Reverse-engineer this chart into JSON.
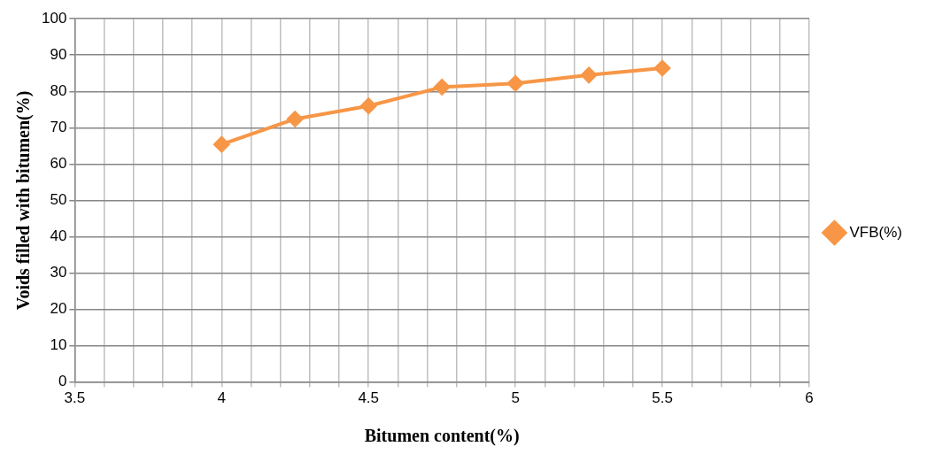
{
  "chart_data": {
    "type": "line",
    "xlabel": "Bitumen content(%)",
    "ylabel": "Voids filled with bitumen(%)",
    "x": [
      4,
      4.25,
      4.5,
      4.75,
      5,
      5.25,
      5.5
    ],
    "series": [
      {
        "name": "VFB(%)",
        "color": "#f79646",
        "values": [
          65.4,
          72.4,
          76,
          81.2,
          82.2,
          84.5,
          86.4
        ]
      }
    ],
    "xlim": [
      3.5,
      6
    ],
    "xticks": [
      3.5,
      {
        "value": 3.6,
        "label": null
      },
      {
        "value": 3.7,
        "label": null
      },
      {
        "value": 3.8,
        "label": null
      },
      {
        "value": 3.9,
        "label": null
      },
      4,
      {
        "value": 4.1,
        "label": null
      },
      {
        "value": 4.2,
        "label": null
      },
      {
        "value": 4.3,
        "label": null
      },
      {
        "value": 4.4,
        "label": null
      },
      4.5,
      {
        "value": 4.6,
        "label": null
      },
      {
        "value": 4.7,
        "label": null
      },
      {
        "value": 4.8,
        "label": null
      },
      {
        "value": 4.9,
        "label": null
      },
      5,
      {
        "value": 5.1,
        "label": null
      },
      {
        "value": 5.2,
        "label": null
      },
      {
        "value": 5.3,
        "label": null
      },
      {
        "value": 5.4,
        "label": null
      },
      5.5,
      {
        "value": 5.6,
        "label": null
      },
      {
        "value": 5.7,
        "label": null
      },
      {
        "value": 5.8,
        "label": null
      },
      {
        "value": 5.9,
        "label": null
      },
      6
    ],
    "ylim": [
      0,
      100
    ],
    "yticks": [
      0,
      10,
      20,
      30,
      40,
      50,
      60,
      70,
      80,
      90,
      100
    ],
    "grid": true,
    "legend": "right",
    "marker": "diamond",
    "line_style": "solid"
  }
}
